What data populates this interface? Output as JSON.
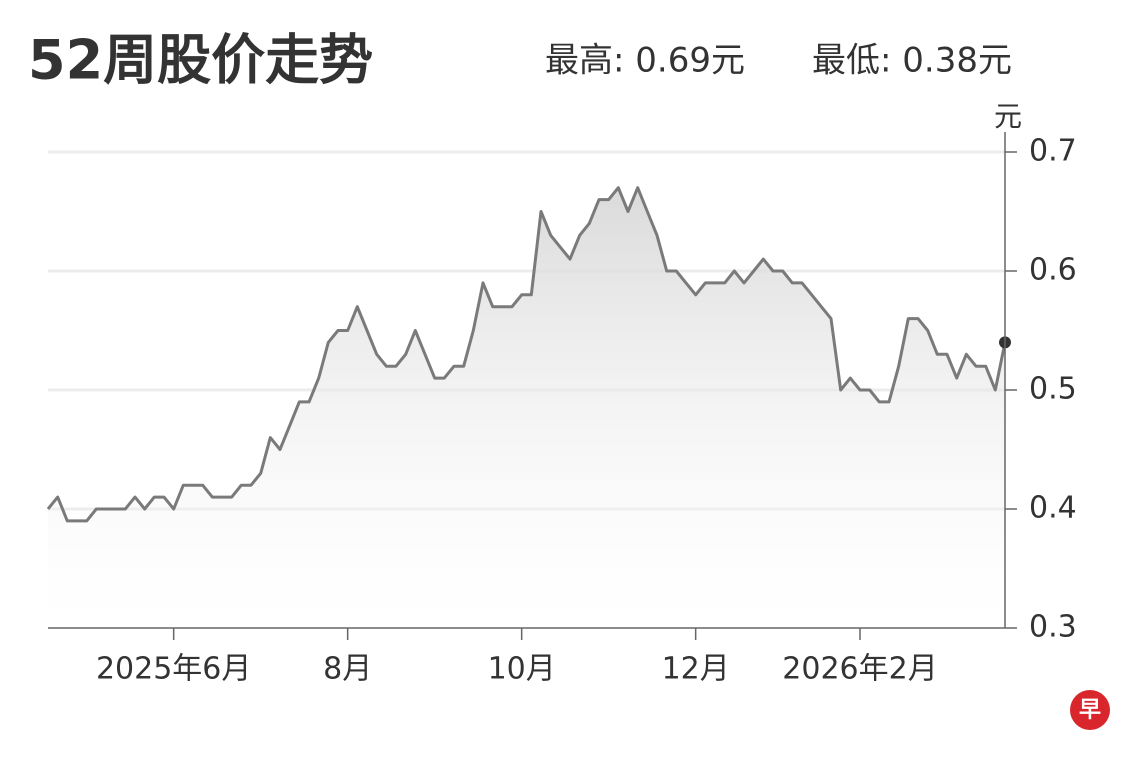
{
  "chart_data": {
    "type": "area-line",
    "title": "52周股价走势",
    "high_label": "最高: 0.69元",
    "low_label": "最低: 0.38元",
    "y_label": "元",
    "logo": "早",
    "color": "#7a7a7a",
    "grid": true,
    "ylim": [
      0.3,
      0.7
    ],
    "yticks": [
      0.3,
      0.4,
      0.5,
      0.6,
      0.7
    ],
    "categories": [
      null,
      null,
      null,
      null,
      null,
      null,
      null,
      null,
      null,
      null,
      null,
      null,
      null,
      "2025年6月",
      null,
      null,
      null,
      null,
      null,
      null,
      null,
      null,
      null,
      null,
      null,
      null,
      null,
      null,
      null,
      null,
      null,
      "8月",
      null,
      null,
      null,
      null,
      null,
      null,
      null,
      null,
      null,
      null,
      null,
      null,
      null,
      null,
      null,
      null,
      null,
      "10月",
      null,
      null,
      null,
      null,
      null,
      null,
      null,
      null,
      null,
      null,
      null,
      null,
      null,
      null,
      null,
      null,
      null,
      "12月",
      null,
      null,
      null,
      null,
      null,
      null,
      null,
      null,
      null,
      null,
      null,
      null,
      null,
      null,
      null,
      null,
      "2026年2月",
      null,
      null,
      null,
      null,
      null,
      null,
      null,
      null,
      null,
      null,
      null,
      null,
      null,
      null,
      null
    ],
    "values": [
      0.4,
      0.41,
      0.39,
      0.39,
      0.39,
      0.4,
      0.4,
      0.4,
      0.4,
      0.41,
      0.4,
      0.41,
      0.41,
      0.4,
      0.42,
      0.42,
      0.42,
      0.41,
      0.41,
      0.41,
      0.42,
      0.42,
      0.43,
      0.46,
      0.45,
      0.47,
      0.49,
      0.49,
      0.51,
      0.54,
      0.55,
      0.55,
      0.57,
      0.55,
      0.53,
      0.52,
      0.52,
      0.53,
      0.55,
      0.53,
      0.51,
      0.51,
      0.52,
      0.52,
      0.55,
      0.59,
      0.57,
      0.57,
      0.57,
      0.58,
      0.58,
      0.65,
      0.63,
      0.62,
      0.61,
      0.63,
      0.64,
      0.66,
      0.66,
      0.67,
      0.65,
      0.67,
      0.65,
      0.63,
      0.6,
      0.6,
      0.59,
      0.58,
      0.59,
      0.59,
      0.59,
      0.6,
      0.59,
      0.6,
      0.61,
      0.6,
      0.6,
      0.59,
      0.59,
      0.58,
      0.57,
      0.56,
      0.5,
      0.51,
      0.5,
      0.5,
      0.49,
      0.49,
      0.52,
      0.56,
      0.56,
      0.55,
      0.53,
      0.53,
      0.51,
      0.53,
      0.52,
      0.52,
      0.5,
      0.54
    ]
  }
}
